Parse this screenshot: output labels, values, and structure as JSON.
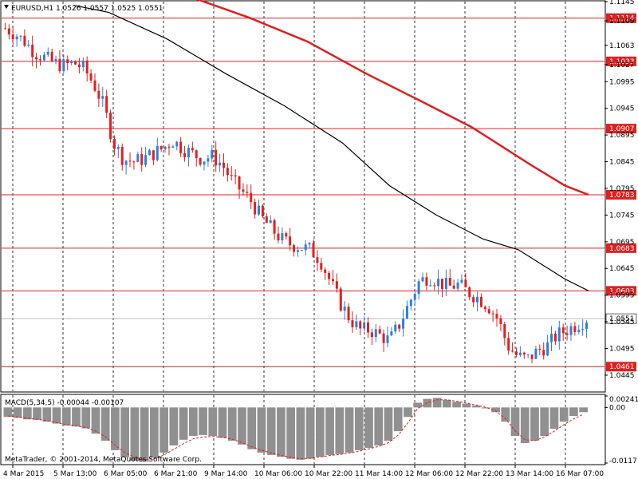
{
  "chart_data": {
    "type": "candlestick",
    "symbol_header": "EURUSD,H1  1.0526 1.0557 1.0525 1.0551",
    "price_range": [
      1.0415,
      1.1145
    ],
    "price_ticks": [
      "1.1145",
      "1.1109",
      "1.1063",
      "1.1027",
      "1.0995",
      "1.0945",
      "1.0895",
      "1.0845",
      "1.0795",
      "1.0745",
      "1.0695",
      "1.0645",
      "1.0595",
      "1.0545",
      "1.0495",
      "1.0445"
    ],
    "h_levels": [
      {
        "value": 1.1114,
        "label": "1.1114"
      },
      {
        "value": 1.1033,
        "label": "1.1033"
      },
      {
        "value": 1.0907,
        "label": "1.0907"
      },
      {
        "value": 1.0783,
        "label": "1.0783"
      },
      {
        "value": 1.0683,
        "label": "1.0683"
      },
      {
        "value": 1.0603,
        "label": "1.0603"
      },
      {
        "value": 1.0461,
        "label": "1.0461"
      }
    ],
    "current_price": {
      "value": 1.0551,
      "label": "1.0551"
    },
    "time_labels": [
      "4 Mar 2015",
      "5 Mar 13:00",
      "6 Mar 05:00",
      "6 Mar 21:00",
      "9 Mar 14:00",
      "10 Mar 06:00",
      "10 Mar 22:00",
      "11 Mar 14:00",
      "12 Mar 06:00",
      "12 Mar 22:00",
      "13 Mar 14:00",
      "16 Mar 07:00"
    ],
    "ma_fast": [
      [
        0.12,
        1.1138
      ],
      [
        0.18,
        1.1125
      ],
      [
        0.28,
        1.1075
      ],
      [
        0.38,
        1.101
      ],
      [
        0.48,
        1.095
      ],
      [
        0.58,
        1.088
      ],
      [
        0.66,
        1.08
      ],
      [
        0.74,
        1.0745
      ],
      [
        0.82,
        1.07
      ],
      [
        0.88,
        1.068
      ],
      [
        0.96,
        1.0625
      ],
      [
        1.0,
        1.0603
      ]
    ],
    "ma_slow": [
      [
        0.33,
        1.115
      ],
      [
        0.42,
        1.1115
      ],
      [
        0.52,
        1.107
      ],
      [
        0.62,
        1.101
      ],
      [
        0.72,
        1.0955
      ],
      [
        0.8,
        1.091
      ],
      [
        0.9,
        1.084
      ],
      [
        0.96,
        1.08
      ],
      [
        1.0,
        1.0783
      ]
    ],
    "price_path": [
      1.1095,
      1.1085,
      1.107,
      1.105,
      1.104,
      1.103,
      1.1025,
      1.103,
      1.102,
      1.099,
      1.095,
      1.088,
      1.085,
      1.0845,
      1.085,
      1.086,
      1.087,
      1.0885,
      1.087,
      1.086,
      1.085,
      1.0855,
      1.084,
      1.081,
      1.079,
      1.077,
      1.074,
      1.072,
      1.07,
      1.069,
      1.0685,
      1.068,
      1.066,
      1.062,
      1.058,
      1.055,
      1.053,
      1.053,
      1.052,
      1.051,
      1.054,
      1.058,
      1.062,
      1.063,
      1.062,
      1.061,
      1.0615,
      1.06,
      1.059,
      1.0575,
      1.055,
      1.05,
      1.048,
      1.0475,
      1.049,
      1.05,
      1.052,
      1.053,
      1.054,
      1.0551
    ],
    "macd": {
      "label": "MACD(5,34,5) -0.00044 -0.00107",
      "top_label": "0.00241",
      "zero_label": "0.00",
      "bottom_label": "-0.0117",
      "range": [
        -0.0117,
        0.00241
      ],
      "histogram": [
        -0.002,
        -0.0022,
        -0.0025,
        -0.0026,
        -0.003,
        -0.0034,
        -0.0038,
        -0.004,
        -0.0044,
        -0.0055,
        -0.007,
        -0.009,
        -0.0105,
        -0.0112,
        -0.0114,
        -0.0106,
        -0.0095,
        -0.008,
        -0.0068,
        -0.006,
        -0.0058,
        -0.006,
        -0.0064,
        -0.007,
        -0.0078,
        -0.0088,
        -0.0095,
        -0.01,
        -0.0104,
        -0.0108,
        -0.011,
        -0.0108,
        -0.0104,
        -0.01,
        -0.0098,
        -0.0095,
        -0.009,
        -0.0085,
        -0.008,
        -0.007,
        -0.005,
        -0.002,
        0.001,
        0.0018,
        0.002,
        0.0016,
        0.0012,
        0.0008,
        0.0004,
        -0.0002,
        -0.001,
        -0.003,
        -0.006,
        -0.0075,
        -0.007,
        -0.006,
        -0.0045,
        -0.003,
        -0.0018,
        -0.001
      ],
      "signal": [
        -0.0018,
        -0.002,
        -0.0023,
        -0.0025,
        -0.0028,
        -0.0032,
        -0.0036,
        -0.0039,
        -0.0042,
        -0.005,
        -0.0062,
        -0.008,
        -0.0095,
        -0.0105,
        -0.011,
        -0.0108,
        -0.01,
        -0.0088,
        -0.0076,
        -0.0066,
        -0.0062,
        -0.0061,
        -0.0063,
        -0.0067,
        -0.0074,
        -0.0083,
        -0.009,
        -0.0096,
        -0.0101,
        -0.0105,
        -0.0108,
        -0.0107,
        -0.0104,
        -0.0101,
        -0.0099,
        -0.0096,
        -0.0092,
        -0.0087,
        -0.0082,
        -0.0074,
        -0.0058,
        -0.0032,
        -0.0002,
        0.001,
        0.0016,
        0.0016,
        0.0013,
        0.0009,
        0.0005,
        0.0,
        -0.0008,
        -0.0024,
        -0.005,
        -0.0068,
        -0.007,
        -0.0062,
        -0.005,
        -0.0036,
        -0.0024,
        -0.0014
      ]
    }
  },
  "copyright": "MetaTrader, © 2001-2014, MetaQuotes Software Corp.",
  "colors": {
    "bull": "#2f7fe0",
    "bear": "#e02020",
    "ma_fast": "#000000",
    "ma_slow": "#e02020",
    "level": "#e02020",
    "macd_hist": "#909090",
    "macd_signal": "#e02020"
  }
}
